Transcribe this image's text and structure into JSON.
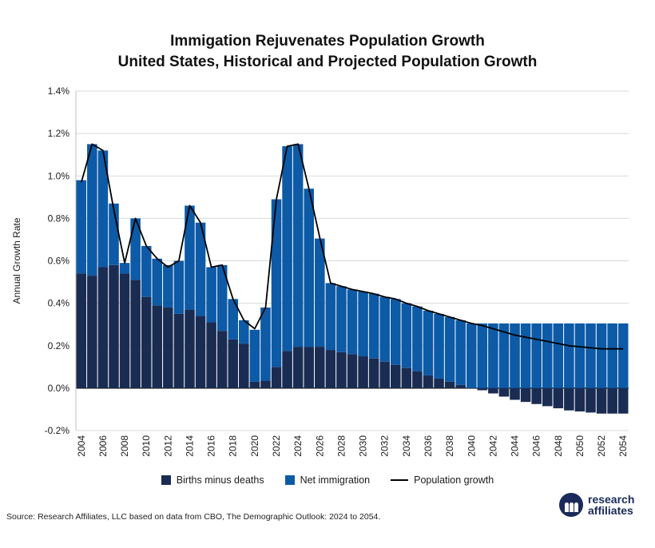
{
  "chart_data": {
    "type": "bar",
    "title": "Immigation Rejuvenates Population Growth",
    "subtitle": "United States, Historical and Projected Population Growth",
    "xlabel": "",
    "ylabel": "Annual Growth Rate",
    "ylim": [
      -0.2,
      1.4
    ],
    "yticks": [
      "1.4%",
      "1.2%",
      "1.0%",
      "0.8%",
      "0.6%",
      "0.4%",
      "0.2%",
      "0.0%",
      "-0.2%"
    ],
    "ytick_values": [
      1.4,
      1.2,
      1.0,
      0.8,
      0.6,
      0.4,
      0.2,
      0.0,
      -0.2
    ],
    "grid": true,
    "stacked": true,
    "legend_position": "bottom",
    "categories": [
      2004,
      2005,
      2006,
      2007,
      2008,
      2009,
      2010,
      2011,
      2012,
      2013,
      2014,
      2015,
      2016,
      2017,
      2018,
      2019,
      2020,
      2021,
      2022,
      2023,
      2024,
      2025,
      2026,
      2027,
      2028,
      2029,
      2030,
      2031,
      2032,
      2033,
      2034,
      2035,
      2036,
      2037,
      2038,
      2039,
      2040,
      2041,
      2042,
      2043,
      2044,
      2045,
      2046,
      2047,
      2048,
      2049,
      2050,
      2051,
      2052,
      2053,
      2054
    ],
    "xtick_labels": [
      "2004",
      "2006",
      "2008",
      "2010",
      "2012",
      "2014",
      "2016",
      "2018",
      "2020",
      "2022",
      "2024",
      "2026",
      "2028",
      "2030",
      "2032",
      "2034",
      "2036",
      "2038",
      "2040",
      "2042",
      "2044",
      "2046",
      "2048",
      "2050",
      "2052",
      "2054"
    ],
    "series": [
      {
        "name": "Births minus deaths",
        "color": "#1a2c52",
        "values": [
          0.54,
          0.53,
          0.57,
          0.58,
          0.54,
          0.51,
          0.43,
          0.39,
          0.38,
          0.35,
          0.37,
          0.34,
          0.31,
          0.27,
          0.23,
          0.21,
          0.03,
          0.035,
          0.1,
          0.175,
          0.195,
          0.195,
          0.195,
          0.18,
          0.17,
          0.16,
          0.15,
          0.14,
          0.125,
          0.11,
          0.095,
          0.08,
          0.06,
          0.045,
          0.03,
          0.015,
          0.0,
          -0.01,
          -0.025,
          -0.04,
          -0.055,
          -0.065,
          -0.075,
          -0.085,
          -0.095,
          -0.105,
          -0.11,
          -0.115,
          -0.12,
          -0.12,
          -0.12
        ]
      },
      {
        "name": "Net immigration",
        "color": "#0d5aa6",
        "values": [
          0.44,
          0.62,
          0.55,
          0.29,
          0.05,
          0.29,
          0.24,
          0.22,
          0.2,
          0.25,
          0.49,
          0.44,
          0.26,
          0.31,
          0.19,
          0.11,
          0.245,
          0.345,
          0.79,
          0.965,
          0.955,
          0.745,
          0.51,
          0.315,
          0.31,
          0.305,
          0.305,
          0.305,
          0.305,
          0.31,
          0.305,
          0.305,
          0.305,
          0.305,
          0.305,
          0.305,
          0.305,
          0.305,
          0.305,
          0.305,
          0.305,
          0.305,
          0.305,
          0.305,
          0.305,
          0.305,
          0.305,
          0.305,
          0.305,
          0.305,
          0.305
        ]
      },
      {
        "name": "Population growth",
        "type": "line",
        "color": "#000000",
        "values": [
          0.97,
          1.15,
          1.12,
          0.84,
          0.59,
          0.8,
          0.67,
          0.61,
          0.57,
          0.6,
          0.86,
          0.78,
          0.57,
          0.58,
          0.42,
          0.32,
          0.28,
          0.38,
          0.89,
          1.14,
          1.15,
          0.94,
          0.71,
          0.495,
          0.48,
          0.465,
          0.455,
          0.445,
          0.43,
          0.42,
          0.4,
          0.385,
          0.365,
          0.35,
          0.335,
          0.32,
          0.305,
          0.295,
          0.28,
          0.265,
          0.25,
          0.24,
          0.23,
          0.22,
          0.21,
          0.2,
          0.195,
          0.19,
          0.185,
          0.185,
          0.185
        ]
      }
    ]
  },
  "source": "Source: Research Affiliates, LLC based on data from CBO, The Demographic Outlook: 2024 to 2054.",
  "logo": {
    "line1": "research",
    "line2": "affiliates",
    "mark": "®"
  }
}
